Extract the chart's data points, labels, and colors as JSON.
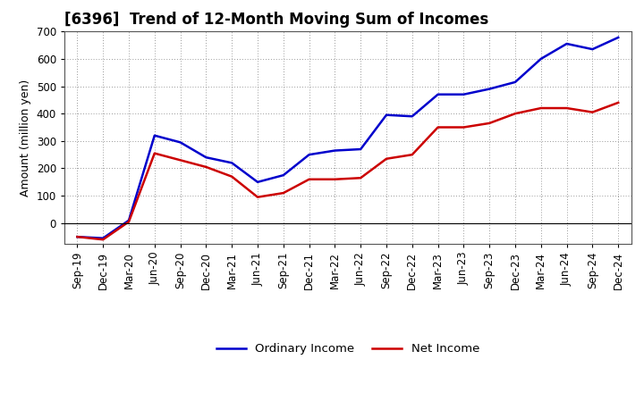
{
  "title": "[6396]  Trend of 12-Month Moving Sum of Incomes",
  "ylabel": "Amount (million yen)",
  "background_color": "#ffffff",
  "grid_color": "#999999",
  "x_labels": [
    "Sep-19",
    "Dec-19",
    "Mar-20",
    "Jun-20",
    "Sep-20",
    "Dec-20",
    "Mar-21",
    "Jun-21",
    "Sep-21",
    "Dec-21",
    "Mar-22",
    "Jun-22",
    "Sep-22",
    "Dec-22",
    "Mar-23",
    "Jun-23",
    "Sep-23",
    "Dec-23",
    "Mar-24",
    "Jun-24",
    "Sep-24",
    "Dec-24"
  ],
  "ordinary_income": [
    -50,
    -55,
    10,
    320,
    295,
    240,
    220,
    150,
    175,
    250,
    265,
    270,
    395,
    390,
    470,
    470,
    490,
    515,
    600,
    655,
    635,
    678
  ],
  "net_income": [
    -50,
    -60,
    5,
    255,
    230,
    205,
    170,
    95,
    110,
    160,
    160,
    165,
    235,
    250,
    350,
    350,
    365,
    400,
    420,
    420,
    405,
    440
  ],
  "ylim": [
    -75,
    700
  ],
  "yticks": [
    0,
    100,
    200,
    300,
    400,
    500,
    600,
    700
  ],
  "ordinary_color": "#0000cc",
  "net_color": "#cc0000",
  "line_width": 1.8,
  "title_fontsize": 12,
  "axis_label_fontsize": 9,
  "tick_fontsize": 8.5,
  "legend_fontsize": 9.5
}
